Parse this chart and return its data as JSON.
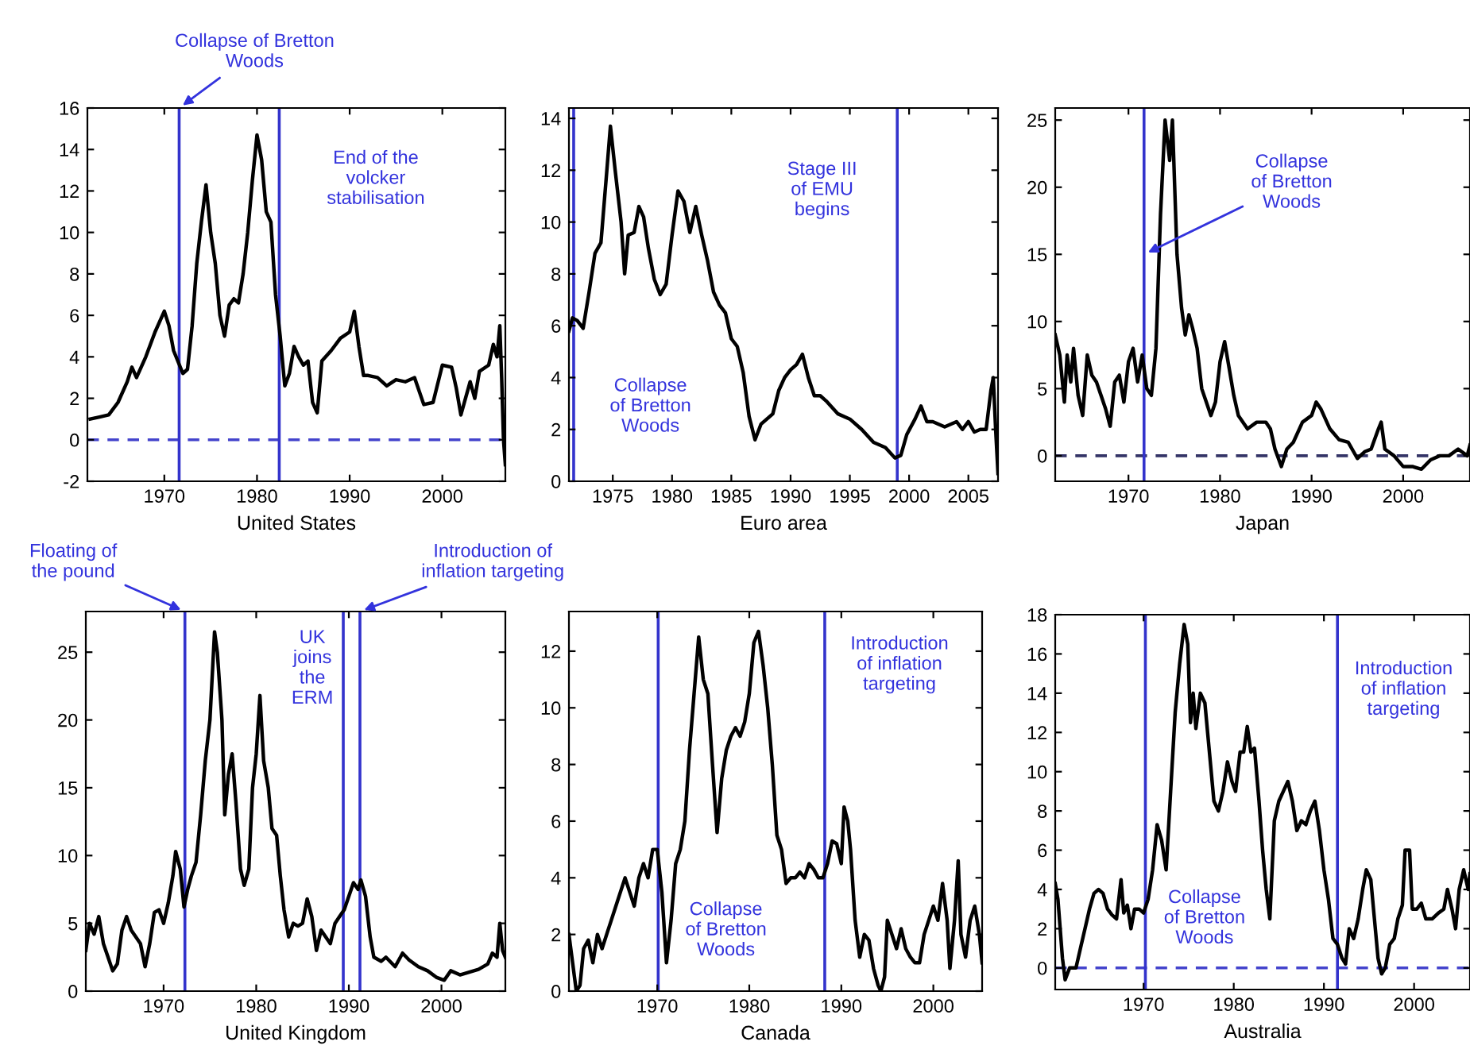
{
  "chart_data": [
    {
      "type": "line",
      "xlabel": "United States",
      "xlim": [
        1961.7,
        2006.8
      ],
      "xticks": [
        1970,
        1980,
        1990,
        2000
      ],
      "ylim": [
        -2,
        16
      ],
      "yticks": [
        -2,
        0,
        2,
        4,
        6,
        8,
        10,
        12,
        14,
        16
      ],
      "grid": false,
      "x": [
        1962,
        1963,
        1964,
        1965,
        1966,
        1966.5,
        1967,
        1968,
        1969,
        1970,
        1970.5,
        1971,
        1972,
        1972.5,
        1973,
        1973.5,
        1974,
        1974.5,
        1975,
        1975.5,
        1976,
        1976.5,
        1977,
        1977.5,
        1978,
        1978.5,
        1979,
        1979.5,
        1980,
        1980.5,
        1981,
        1981.5,
        1982,
        1982.5,
        1983,
        1983.5,
        1984,
        1984.5,
        1985,
        1985.5,
        1986,
        1986.5,
        1987,
        1988,
        1989,
        1990,
        1990.5,
        1991,
        1991.5,
        1992,
        1993,
        1994,
        1995,
        1996,
        1997,
        1998,
        1999,
        2000,
        2001,
        2001.5,
        2002,
        2003,
        2003.5,
        2004,
        2005,
        2005.5,
        2005.9,
        2006.2,
        2006.4,
        2006.6,
        2006.8
      ],
      "series": [
        {
          "color": "#000000",
          "values": [
            1.0,
            1.1,
            1.2,
            1.8,
            2.8,
            3.5,
            3.0,
            4.0,
            5.2,
            6.2,
            5.5,
            4.3,
            3.2,
            3.4,
            5.5,
            8.5,
            10.5,
            12.3,
            10,
            8.5,
            6.0,
            5.0,
            6.5,
            6.8,
            6.6,
            8.0,
            10.0,
            12.5,
            14.7,
            13.5,
            11.0,
            10.5,
            7.0,
            5.0,
            2.6,
            3.2,
            4.5,
            4.0,
            3.6,
            3.8,
            1.8,
            1.3,
            3.8,
            4.3,
            4.9,
            5.2,
            6.2,
            4.5,
            3.1,
            3.1,
            3.0,
            2.6,
            2.9,
            2.8,
            3.0,
            1.7,
            1.8,
            3.6,
            3.5,
            2.5,
            1.2,
            2.8,
            2.0,
            3.3,
            3.6,
            4.6,
            4.0,
            5.5,
            3.0,
            0,
            -1.2
          ]
        }
      ],
      "ref_lines": [
        {
          "axis": "y",
          "value": 0,
          "color": "#4444cc",
          "line_style": "dashed"
        },
        {
          "axis": "x",
          "value": 1971.6,
          "color": "#3333cc",
          "label": "Collapse of Bretton\nWoods"
        },
        {
          "axis": "x",
          "value": 1982.4,
          "color": "#3333cc",
          "label": "End of the\nvolcker\nstabilisation"
        }
      ]
    },
    {
      "type": "line",
      "xlabel": "Euro area",
      "xlim": [
        1971.3,
        2007.5
      ],
      "xticks": [
        1975,
        1980,
        1985,
        1990,
        1995,
        2000,
        2005
      ],
      "ylim": [
        0,
        14.4
      ],
      "yticks": [
        0,
        2,
        4,
        6,
        8,
        10,
        12,
        14
      ],
      "grid": false,
      "x": [
        1971.3,
        1971.6,
        1972,
        1972.5,
        1973,
        1973.5,
        1974,
        1974.5,
        1974.8,
        1975.2,
        1975.7,
        1976,
        1976.3,
        1976.8,
        1977.2,
        1977.6,
        1978,
        1978.5,
        1979,
        1979.5,
        1980,
        1980.5,
        1981,
        1981.5,
        1982,
        1982.5,
        1983,
        1983.5,
        1984,
        1984.5,
        1985,
        1985.5,
        1986,
        1986.5,
        1987,
        1987.5,
        1988,
        1988.5,
        1989,
        1989.5,
        1990,
        1990.5,
        1991,
        1991.5,
        1992,
        1992.5,
        1993,
        1994,
        1995,
        1996,
        1997,
        1998,
        1998.8,
        1999.3,
        1999.8,
        2000.5,
        2001,
        2001.5,
        2002,
        2003,
        2004,
        2004.5,
        2005,
        2005.5,
        2006,
        2006.5,
        2006.9,
        2007.1,
        2007.3,
        2007.5
      ],
      "series": [
        {
          "color": "#000000",
          "values": [
            5.8,
            6.3,
            6.2,
            5.9,
            7.3,
            8.8,
            9.2,
            12.0,
            13.7,
            12.0,
            10,
            8.0,
            9.5,
            9.6,
            10.6,
            10.2,
            9.0,
            7.8,
            7.2,
            7.6,
            9.5,
            11.2,
            10.8,
            9.6,
            10.6,
            9.5,
            8.5,
            7.3,
            6.8,
            6.5,
            5.5,
            5.2,
            4.2,
            2.5,
            1.6,
            2.2,
            2.4,
            2.6,
            3.5,
            4.0,
            4.3,
            4.5,
            4.9,
            4.0,
            3.3,
            3.3,
            3.1,
            2.6,
            2.4,
            2.0,
            1.5,
            1.3,
            0.9,
            1.0,
            1.8,
            2.4,
            2.9,
            2.3,
            2.3,
            2.1,
            2.3,
            2.0,
            2.3,
            1.9,
            2.0,
            2.0,
            3.5,
            4.0,
            2.0,
            0.3
          ]
        }
      ],
      "ref_lines": [
        {
          "axis": "x",
          "value": 1971.7,
          "color": "#3333cc",
          "label": "Collapse\nof Bretton\nWoods"
        },
        {
          "axis": "x",
          "value": 1999,
          "color": "#3333cc",
          "label": "Stage III\nof EMU\nbegins"
        }
      ]
    },
    {
      "type": "line",
      "xlabel": "Japan",
      "xlim": [
        1962,
        2007.3
      ],
      "xticks": [
        1970,
        1980,
        1990,
        2000
      ],
      "ylim": [
        -1.9,
        25.9
      ],
      "yticks": [
        0,
        5,
        10,
        15,
        20,
        25
      ],
      "grid": false,
      "x": [
        1962,
        1962.5,
        1963,
        1963.3,
        1963.7,
        1964,
        1964.5,
        1965,
        1965.5,
        1966,
        1966.5,
        1967,
        1967.5,
        1968,
        1968.5,
        1969,
        1969.5,
        1970,
        1970.5,
        1971,
        1971.5,
        1972,
        1972.5,
        1973,
        1973.5,
        1974,
        1974.5,
        1974.8,
        1975.3,
        1975.8,
        1976.2,
        1976.6,
        1977,
        1977.5,
        1978,
        1978.5,
        1979,
        1979.5,
        1980,
        1980.5,
        1981,
        1981.5,
        1982,
        1983,
        1984,
        1985,
        1985.5,
        1986,
        1986.7,
        1987.3,
        1988,
        1989,
        1990,
        1990.5,
        1991,
        1992,
        1993,
        1994,
        1995,
        1995.8,
        1996.5,
        1997.3,
        1997.6,
        1998,
        1999,
        2000,
        2001,
        2002,
        2003,
        2004,
        2005,
        2006,
        2007,
        2007.3
      ],
      "series": [
        {
          "color": "#000000",
          "values": [
            9.0,
            7.5,
            4.0,
            7.5,
            5.5,
            8.0,
            4.5,
            3.0,
            7.5,
            6.0,
            5.5,
            4.5,
            3.5,
            2.2,
            5.5,
            6.0,
            4.0,
            7.0,
            8.0,
            5.5,
            7.5,
            5.0,
            4.5,
            8.0,
            18,
            25,
            22,
            25,
            15,
            11,
            9.0,
            10.5,
            9.5,
            8.0,
            5.0,
            4.0,
            3.0,
            4.0,
            7.0,
            8.5,
            6.5,
            4.5,
            3.0,
            2.0,
            2.5,
            2.5,
            2.0,
            0.5,
            -0.8,
            0.5,
            1.0,
            2.5,
            3.0,
            4.0,
            3.5,
            2.0,
            1.2,
            1.0,
            -0.2,
            0.3,
            0.5,
            2.0,
            2.5,
            0.5,
            0.0,
            -0.8,
            -0.8,
            -1.0,
            -0.3,
            0.0,
            0.0,
            0.5,
            0.0,
            0.8
          ]
        }
      ],
      "ref_lines": [
        {
          "axis": "y",
          "value": 0,
          "color": "#333366",
          "line_style": "dashed"
        },
        {
          "axis": "x",
          "value": 1971.7,
          "color": "#3333cc"
        }
      ],
      "annotations": [
        {
          "text": "Collapse\nof Bretton\nWoods",
          "x": 1971.7,
          "y": 15
        }
      ]
    },
    {
      "type": "line",
      "xlabel": "United Kingdom",
      "xlim": [
        1961.6,
        2006.9
      ],
      "xticks": [
        1970,
        1980,
        1990,
        2000
      ],
      "ylim": [
        0,
        28
      ],
      "yticks": [
        0,
        5,
        10,
        15,
        20,
        25
      ],
      "grid": false,
      "x": [
        1961.6,
        1962,
        1962.5,
        1963,
        1963.5,
        1964,
        1964.5,
        1965,
        1965.5,
        1966,
        1966.5,
        1967,
        1967.5,
        1968,
        1968.5,
        1969,
        1969.5,
        1970,
        1970.5,
        1971,
        1971.3,
        1971.8,
        1972.2,
        1972.6,
        1973,
        1973.5,
        1974,
        1974.5,
        1975,
        1975.5,
        1975.8,
        1976.3,
        1976.6,
        1977,
        1977.4,
        1977.8,
        1978.3,
        1978.7,
        1979.2,
        1979.6,
        1980,
        1980.4,
        1980.8,
        1981.3,
        1981.7,
        1982.2,
        1982.6,
        1983,
        1983.5,
        1984,
        1984.5,
        1985,
        1985.5,
        1986,
        1986.5,
        1987,
        1987.5,
        1988,
        1988.5,
        1989,
        1989.5,
        1990,
        1990.5,
        1991,
        1991.3,
        1991.8,
        1992.3,
        1992.7,
        1993.5,
        1994,
        1995,
        1995.8,
        1996.5,
        1997.5,
        1998.5,
        1999.5,
        2000.3,
        2001,
        2002,
        2003,
        2004,
        2005,
        2005.5,
        2006,
        2006.3,
        2006.6,
        2006.9
      ],
      "series": [
        {
          "color": "#000000",
          "values": [
            3.0,
            5.0,
            4.2,
            5.5,
            3.5,
            2.5,
            1.5,
            2.0,
            4.5,
            5.5,
            4.5,
            4.0,
            3.5,
            1.8,
            3.5,
            5.8,
            6.0,
            5.0,
            6.5,
            8.5,
            10.3,
            9.0,
            6.2,
            7.5,
            8.5,
            9.5,
            13,
            17,
            20,
            26.5,
            25,
            20,
            13,
            16,
            17.5,
            14,
            9,
            7.8,
            9,
            15,
            17.5,
            21.8,
            17,
            15,
            12,
            11.5,
            8.5,
            6.0,
            4.0,
            5.0,
            4.8,
            5.0,
            6.8,
            5.5,
            3.0,
            4.5,
            4.0,
            3.5,
            5.0,
            5.5,
            6.0,
            7.0,
            8.0,
            7.5,
            8.2,
            7.0,
            4.0,
            2.5,
            2.2,
            2.5,
            1.8,
            2.8,
            2.3,
            1.8,
            1.5,
            1.0,
            0.8,
            1.5,
            1.2,
            1.4,
            1.6,
            2.0,
            2.8,
            2.5,
            5.0,
            3.0,
            2.5
          ]
        }
      ],
      "ref_lines": [
        {
          "axis": "x",
          "value": 1972.3,
          "color": "#3333cc"
        },
        {
          "axis": "x",
          "value": 1989.4,
          "color": "#3333cc",
          "label": "UK\njoins\nthe\nERM"
        },
        {
          "axis": "x",
          "value": 1991.2,
          "color": "#3333cc"
        }
      ],
      "annotations": [
        {
          "text": "Floating of\nthe pound",
          "x": 1972.3,
          "y": 28
        },
        {
          "text": "Introduction of\ninflation targeting",
          "x": 1991.2,
          "y": 28
        }
      ]
    },
    {
      "type": "line",
      "xlabel": "Canada",
      "xlim": [
        1960.4,
        2005.3
      ],
      "xticks": [
        1970,
        1980,
        1990,
        2000
      ],
      "ylim": [
        0,
        13.4
      ],
      "yticks": [
        0,
        2,
        4,
        6,
        8,
        10,
        12
      ],
      "grid": false,
      "x": [
        1960.4,
        1960.8,
        1961.2,
        1961.6,
        1962,
        1962.5,
        1963,
        1963.5,
        1964,
        1964.5,
        1965,
        1965.5,
        1966,
        1966.5,
        1967,
        1967.5,
        1968,
        1968.5,
        1969,
        1969.5,
        1970,
        1970.5,
        1971,
        1971.5,
        1972,
        1972.5,
        1973,
        1973.5,
        1974,
        1974.5,
        1975,
        1975.5,
        1976,
        1976.5,
        1977,
        1977.5,
        1978,
        1978.5,
        1979,
        1979.5,
        1980,
        1980.5,
        1981,
        1981.5,
        1982,
        1982.5,
        1983,
        1983.5,
        1984,
        1984.5,
        1985,
        1985.5,
        1986,
        1986.5,
        1987,
        1987.5,
        1988,
        1988.5,
        1989,
        1989.5,
        1990,
        1990.3,
        1990.7,
        1991,
        1991.5,
        1992,
        1992.5,
        1993,
        1993.5,
        1994,
        1994.3,
        1994.7,
        1995,
        1995.5,
        1996,
        1996.5,
        1997,
        1997.5,
        1998,
        1998.5,
        1999,
        1999.5,
        2000,
        2000.5,
        2001,
        2001.5,
        2001.8,
        2002.3,
        2002.7,
        2003,
        2003.5,
        2004,
        2004.5,
        2005,
        2005.3
      ],
      "series": [
        {
          "color": "#000000",
          "values": [
            2.0,
            1.0,
            0,
            0.2,
            1.5,
            1.8,
            1.0,
            2.0,
            1.5,
            2.0,
            2.5,
            3.0,
            3.5,
            4.0,
            3.5,
            3.0,
            4.0,
            4.5,
            4.0,
            5.0,
            5.0,
            3.5,
            1.0,
            2.5,
            4.5,
            5.0,
            6.0,
            8.5,
            10.5,
            12.5,
            11.0,
            10.5,
            8.0,
            5.6,
            7.5,
            8.5,
            9.0,
            9.3,
            9.0,
            9.5,
            10.5,
            12.3,
            12.7,
            11.5,
            10.0,
            8.0,
            5.5,
            5.0,
            3.8,
            4.0,
            4.0,
            4.2,
            4.0,
            4.5,
            4.3,
            4.0,
            4.0,
            4.5,
            5.3,
            5.2,
            4.5,
            6.5,
            6.0,
            5.0,
            2.5,
            1.2,
            2.0,
            1.8,
            0.8,
            0.2,
            0.0,
            0.5,
            2.5,
            2.0,
            1.5,
            2.2,
            1.5,
            1.2,
            1.0,
            1.0,
            2.0,
            2.5,
            3.0,
            2.5,
            3.8,
            2.5,
            0.8,
            2.5,
            4.6,
            2.0,
            1.2,
            2.5,
            3.0,
            2.0,
            1.0
          ]
        }
      ],
      "ref_lines": [
        {
          "axis": "x",
          "value": 1970.1,
          "color": "#3333cc",
          "label": "Collapse\nof Bretton\nWoods"
        },
        {
          "axis": "x",
          "value": 1988.2,
          "color": "#3333cc",
          "label": "Introduction\nof inflation\ntargeting"
        }
      ]
    },
    {
      "type": "line",
      "xlabel": "Australia",
      "xlim": [
        1960.2,
        2006.2
      ],
      "xticks": [
        1970,
        1980,
        1990,
        2000
      ],
      "ylim": [
        -1.1,
        18
      ],
      "yticks": [
        0,
        2,
        4,
        6,
        8,
        10,
        12,
        14,
        16,
        18
      ],
      "grid": false,
      "x": [
        1960.2,
        1960.5,
        1961,
        1961.3,
        1961.8,
        1962.5,
        1963,
        1963.5,
        1964,
        1964.5,
        1965,
        1965.5,
        1966,
        1966.5,
        1967,
        1967.5,
        1967.8,
        1968.2,
        1968.6,
        1969,
        1969.5,
        1970,
        1970.5,
        1971,
        1971.5,
        1972,
        1972.5,
        1973,
        1973.5,
        1974,
        1974.5,
        1974.9,
        1975.2,
        1975.5,
        1975.8,
        1976.3,
        1976.8,
        1977.3,
        1977.8,
        1978.3,
        1978.8,
        1979.3,
        1979.8,
        1980.2,
        1980.7,
        1981.1,
        1981.5,
        1981.9,
        1982.3,
        1982.8,
        1983.2,
        1983.6,
        1984,
        1984.5,
        1985,
        1985.5,
        1986,
        1986.5,
        1987,
        1987.5,
        1988,
        1988.5,
        1989,
        1989.5,
        1990,
        1990.5,
        1991,
        1991.5,
        1992,
        1992.4,
        1992.8,
        1993.3,
        1993.8,
        1994.3,
        1994.7,
        1995.2,
        1995.7,
        1996,
        1996.4,
        1996.8,
        1997.3,
        1997.8,
        1998.2,
        1998.7,
        1999,
        1999.5,
        1999.8,
        2000.3,
        2000.8,
        2001.3,
        2002,
        2002.7,
        2003.3,
        2003.7,
        2004.2,
        2004.6,
        2005,
        2005.5,
        2006,
        2006.2
      ],
      "series": [
        {
          "color": "#000000",
          "values": [
            4.3,
            3.5,
            0.5,
            -0.6,
            0.0,
            0.0,
            1.0,
            2.0,
            3.0,
            3.8,
            4.0,
            3.8,
            3.0,
            2.7,
            2.5,
            4.5,
            2.8,
            3.2,
            2.0,
            3.0,
            3.0,
            2.8,
            3.5,
            5.0,
            7.3,
            6.5,
            5.0,
            9.0,
            13.0,
            15.5,
            17.5,
            16.5,
            12.5,
            14.0,
            12.2,
            14.0,
            13.5,
            11.0,
            8.5,
            8.0,
            9.0,
            10.5,
            9.5,
            9.0,
            11.0,
            11.0,
            12.3,
            11.0,
            11.2,
            8.5,
            6.0,
            4.0,
            2.5,
            7.5,
            8.5,
            9.0,
            9.5,
            8.5,
            7.0,
            7.5,
            7.3,
            8.0,
            8.5,
            7.0,
            5.0,
            3.5,
            1.5,
            1.2,
            0.5,
            0.2,
            2.0,
            1.5,
            2.5,
            4.0,
            5.0,
            4.5,
            2.0,
            0.5,
            -0.3,
            0.0,
            1.2,
            1.5,
            2.5,
            3.2,
            6.0,
            6.0,
            3.0,
            3.0,
            3.3,
            2.5,
            2.5,
            2.8,
            3.0,
            4.0,
            3.0,
            2.0,
            4.0,
            5.0,
            4.0,
            4.8
          ]
        }
      ],
      "ref_lines": [
        {
          "axis": "y",
          "value": 0,
          "color": "#4444cc",
          "line_style": "dashed"
        },
        {
          "axis": "x",
          "value": 1970.2,
          "color": "#3333cc",
          "label": "Collapse\nof Bretton\nWoods"
        },
        {
          "axis": "x",
          "value": 1991.5,
          "color": "#3333cc",
          "label": "Introduction\nof inflation\ntargeting"
        }
      ]
    }
  ]
}
